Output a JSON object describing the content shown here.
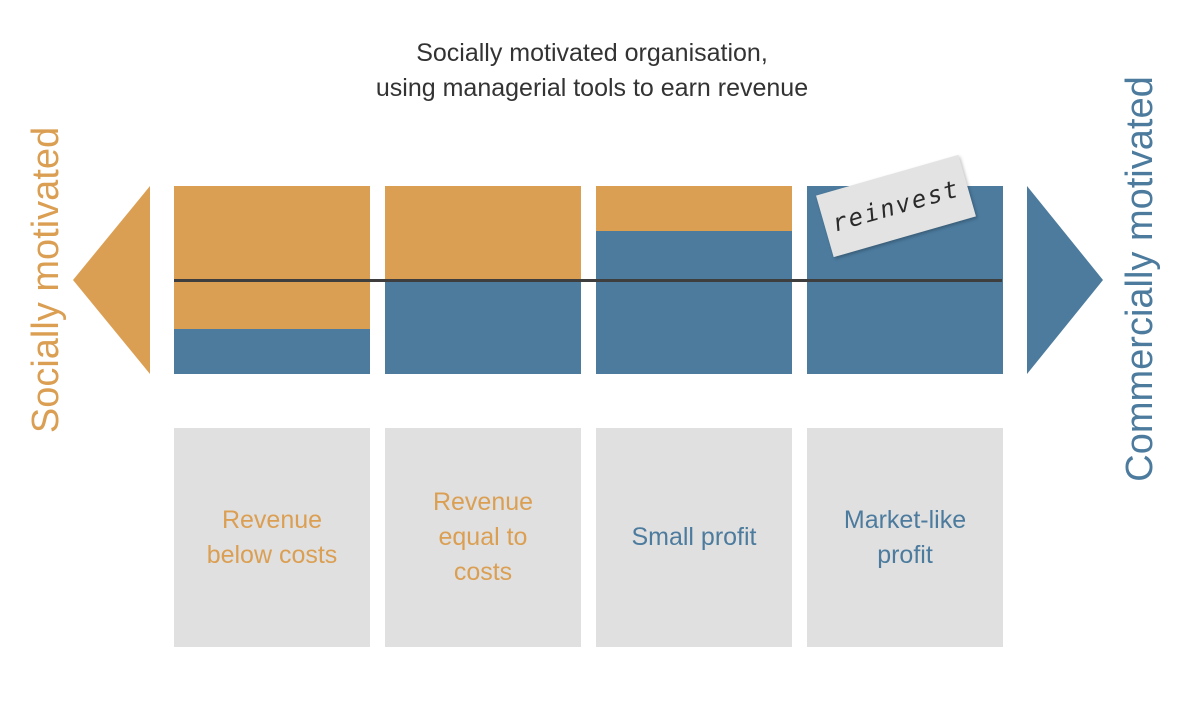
{
  "title": {
    "line1": "Socially motivated organisation,",
    "line2": "using managerial tools to earn revenue"
  },
  "left_label": "Socially motivated",
  "right_label": "Commercially motivated",
  "note_text": "reinvest",
  "colors": {
    "social": "#db9f53",
    "commercial": "#4c7b9e",
    "box_bg": "#e0e0e0",
    "baseline": "#3e3e3e",
    "title_text": "#333333"
  },
  "columns": [
    {
      "lines": [
        "Revenue",
        "below costs"
      ],
      "revenue_share": 0.24,
      "text_color": "orange"
    },
    {
      "lines": [
        "Revenue",
        "equal to",
        "costs"
      ],
      "revenue_share": 0.5,
      "text_color": "orange"
    },
    {
      "lines": [
        "Small profit"
      ],
      "revenue_share": 0.76,
      "text_color": "blue"
    },
    {
      "lines": [
        "Market-like",
        "profit"
      ],
      "revenue_share": 1.0,
      "text_color": "blue"
    }
  ]
}
